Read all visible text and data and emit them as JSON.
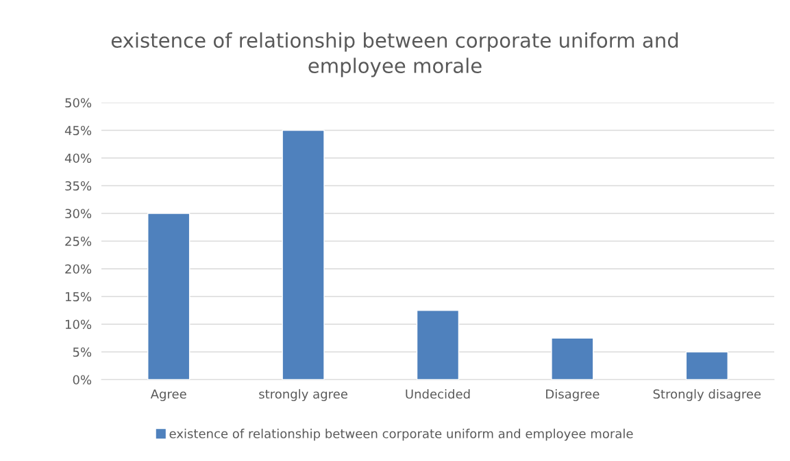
{
  "chart_data": {
    "type": "bar",
    "title": "existence of relationship between corporate uniform and\nemployee morale",
    "categories": [
      "Agree",
      "strongly agree",
      "Undecided",
      "Disagree",
      "Strongly disagree"
    ],
    "series": [
      {
        "name": "existence of relationship between corporate uniform and employee morale",
        "color": "#4f81bd",
        "values": [
          30,
          45,
          12.5,
          7.5,
          5
        ]
      }
    ],
    "ylim": [
      0,
      50
    ],
    "yticks": [
      {
        "value": 0,
        "label": "0%"
      },
      {
        "value": 5,
        "label": "5%"
      },
      {
        "value": 10,
        "label": "10%"
      },
      {
        "value": 15,
        "label": "15%"
      },
      {
        "value": 20,
        "label": "20%"
      },
      {
        "value": 25,
        "label": "25%"
      },
      {
        "value": 30,
        "label": "30%"
      },
      {
        "value": 35,
        "label": "35%"
      },
      {
        "value": 40,
        "label": "40%"
      },
      {
        "value": 45,
        "label": "45%"
      },
      {
        "value": 50,
        "label": "50%"
      }
    ],
    "grid": "y",
    "legend": "bottom"
  }
}
